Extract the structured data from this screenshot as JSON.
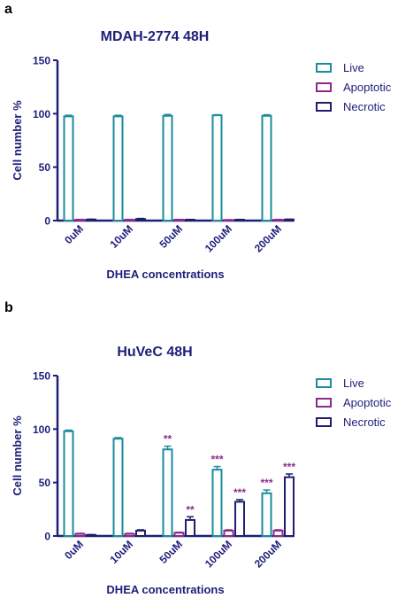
{
  "figure": {
    "panels": [
      "a",
      "b"
    ]
  },
  "colors": {
    "live": "#1a8c9c",
    "apoptotic": "#8c2a8c",
    "necrotic": "#1e1e6e",
    "axis": "#1e1e7a",
    "star": "#8c2a8c"
  },
  "chart_data": [
    {
      "type": "bar",
      "panel_letter": "a",
      "title": "MDAH-2774 48H",
      "xlabel": "DHEA concentrations",
      "ylabel": "Cell number %",
      "ylim": [
        0,
        150
      ],
      "yticks": [
        "0",
        "50",
        "100",
        "150"
      ],
      "categories": [
        "0uM",
        "10uM",
        "50uM",
        "100uM",
        "200uM"
      ],
      "legend_position": "top-right",
      "series": [
        {
          "name": "Live",
          "color_key": "live",
          "values": [
            97.5,
            97.5,
            98,
            98.5,
            98
          ],
          "errors": [
            1,
            1,
            1.2,
            0.5,
            1
          ],
          "stars": [
            "",
            "",
            "",
            "",
            ""
          ]
        },
        {
          "name": "Apoptotic",
          "color_key": "apoptotic",
          "values": [
            0.8,
            0.8,
            0.8,
            0.5,
            0.8
          ],
          "errors": [
            0.3,
            0.3,
            0.3,
            0.3,
            0.3
          ],
          "stars": [
            "",
            "",
            "",
            "",
            ""
          ]
        },
        {
          "name": "Necrotic",
          "color_key": "necrotic",
          "values": [
            1,
            1.5,
            0.8,
            0.8,
            1
          ],
          "errors": [
            0.3,
            0.5,
            0.3,
            0.3,
            0.3
          ],
          "stars": [
            "",
            "",
            "",
            "",
            ""
          ]
        }
      ]
    },
    {
      "type": "bar",
      "panel_letter": "b",
      "title": "HuVeC 48H",
      "xlabel": "DHEA concentrations",
      "ylabel": "Cell number %",
      "ylim": [
        0,
        150
      ],
      "yticks": [
        "0",
        "50",
        "100",
        "150"
      ],
      "categories": [
        "0uM",
        "10uM",
        "50uM",
        "100uM",
        "200uM"
      ],
      "legend_position": "top-right",
      "series": [
        {
          "name": "Live",
          "color_key": "live",
          "values": [
            98,
            91,
            81,
            62,
            40
          ],
          "errors": [
            1,
            1,
            3,
            3,
            3
          ],
          "stars": [
            "",
            "",
            "**",
            "***",
            "***"
          ]
        },
        {
          "name": "Apoptotic",
          "color_key": "apoptotic",
          "values": [
            2,
            2,
            3,
            5,
            5
          ],
          "errors": [
            0.5,
            0.5,
            0.5,
            0.8,
            0.8
          ],
          "stars": [
            "",
            "",
            "",
            "",
            ""
          ]
        },
        {
          "name": "Necrotic",
          "color_key": "necrotic",
          "values": [
            1,
            5,
            15,
            32,
            55
          ],
          "errors": [
            0.3,
            0.8,
            3,
            2,
            3
          ],
          "stars": [
            "",
            "",
            "**",
            "***",
            "***"
          ]
        }
      ]
    }
  ]
}
